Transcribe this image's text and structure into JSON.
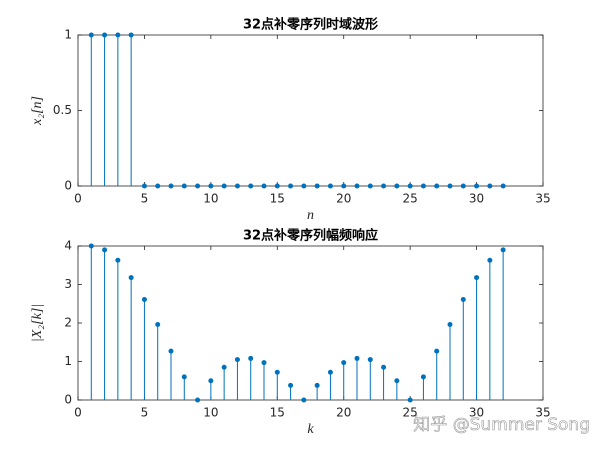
{
  "chart_data": [
    {
      "type": "stem",
      "title": "32点补零序列时域波形",
      "x_label": "n",
      "y_label": "x₂[n]",
      "color": "#0072bd",
      "x": [
        1,
        2,
        3,
        4,
        5,
        6,
        7,
        8,
        9,
        10,
        11,
        12,
        13,
        14,
        15,
        16,
        17,
        18,
        19,
        20,
        21,
        22,
        23,
        24,
        25,
        26,
        27,
        28,
        29,
        30,
        31,
        32
      ],
      "values": [
        1,
        1,
        1,
        1,
        0,
        0,
        0,
        0,
        0,
        0,
        0,
        0,
        0,
        0,
        0,
        0,
        0,
        0,
        0,
        0,
        0,
        0,
        0,
        0,
        0,
        0,
        0,
        0,
        0,
        0,
        0,
        0
      ],
      "xlim": [
        0,
        35
      ],
      "xticks": [
        0,
        5,
        10,
        15,
        20,
        25,
        30,
        35
      ],
      "ylim": [
        0,
        1
      ],
      "yticks": [
        0,
        0.5,
        1
      ]
    },
    {
      "type": "stem",
      "title": "32点补零序列幅频响应",
      "x_label": "k",
      "y_label": "|X₂[k]|",
      "color": "#0072bd",
      "x": [
        1,
        2,
        3,
        4,
        5,
        6,
        7,
        8,
        9,
        10,
        11,
        12,
        13,
        14,
        15,
        16,
        17,
        18,
        19,
        20,
        21,
        22,
        23,
        24,
        25,
        26,
        27,
        28,
        29,
        30,
        31,
        32
      ],
      "values": [
        4,
        3.9,
        3.63,
        3.18,
        2.61,
        1.96,
        1.27,
        0.6,
        0,
        0.5,
        0.85,
        1.05,
        1.08,
        0.97,
        0.72,
        0.38,
        0,
        0.38,
        0.72,
        0.97,
        1.08,
        1.05,
        0.85,
        0.5,
        0,
        0.6,
        1.27,
        1.96,
        2.61,
        3.18,
        3.63,
        3.9
      ],
      "xlim": [
        0,
        35
      ],
      "xticks": [
        0,
        5,
        10,
        15,
        20,
        25,
        30,
        35
      ],
      "ylim": [
        0,
        4
      ],
      "yticks": [
        0,
        1,
        2,
        3,
        4
      ]
    }
  ],
  "watermark": "知乎 @Summer Song"
}
